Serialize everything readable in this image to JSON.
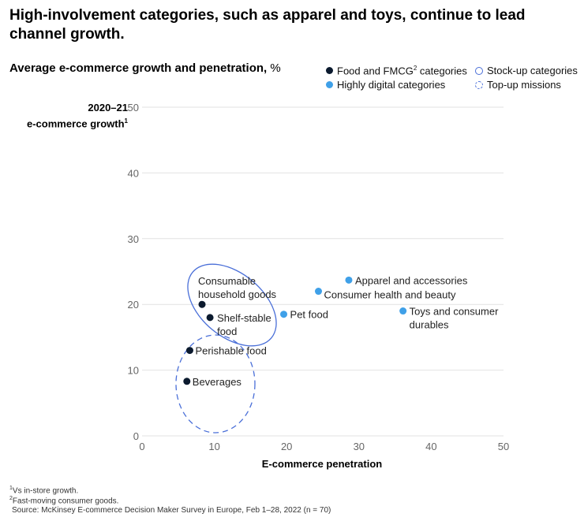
{
  "title": "High-involvement categories, such as apparel and toys, continue to lead channel growth.",
  "subtitle": "Average e-commerce growth and penetration,",
  "subtitle_unit": "%",
  "legend": [
    {
      "label": "Food and FMCG",
      "sup": "2",
      "label_after": " categories",
      "icon": "filled-dot-icon",
      "color": "#0b1a2e"
    },
    {
      "label": "Highly digital categories",
      "icon": "filled-dot-icon",
      "color": "#3fa0e8"
    },
    {
      "label": "Stock-up categories",
      "icon": "solid-circle-outline-icon",
      "color": "#4a6fd8"
    },
    {
      "label": "Top-up missions",
      "icon": "dashed-circle-outline-icon",
      "color": "#4a6fd8"
    }
  ],
  "chart_data": {
    "type": "scatter",
    "title": "Average e-commerce growth and penetration, %",
    "xlabel": "E-commerce penetration",
    "ylabel_line1": "2020–21",
    "ylabel_line2": "e-commerce growth",
    "ylabel_sup": "1",
    "xlim": [
      0,
      50
    ],
    "ylim": [
      0,
      50
    ],
    "xticks": [
      "0",
      "10",
      "20",
      "30",
      "40",
      "50"
    ],
    "yticks": [
      "0",
      "10",
      "20",
      "30",
      "40",
      "50"
    ],
    "grid": true,
    "points": [
      {
        "label": [
          "Consumable",
          "household goods"
        ],
        "x": 8.3,
        "y": 20,
        "group": "Food and FMCG"
      },
      {
        "label": [
          "Shelf-stable",
          "food"
        ],
        "x": 9.4,
        "y": 18,
        "group": "Food and FMCG"
      },
      {
        "label": [
          "Perishable food"
        ],
        "x": 6.6,
        "y": 13,
        "group": "Food and FMCG"
      },
      {
        "label": [
          "Beverages"
        ],
        "x": 6.2,
        "y": 8.3,
        "group": "Food and FMCG"
      },
      {
        "label": [
          "Pet food"
        ],
        "x": 19.6,
        "y": 18.5,
        "group": "Highly digital"
      },
      {
        "label": [
          "Consumer health and beauty"
        ],
        "x": 24.4,
        "y": 22,
        "group": "Highly digital"
      },
      {
        "label": [
          "Apparel and accessories"
        ],
        "x": 28.6,
        "y": 23.7,
        "group": "Highly digital"
      },
      {
        "label": [
          "Toys and consumer",
          "durables"
        ],
        "x": 36.1,
        "y": 19,
        "group": "Highly digital"
      }
    ]
  },
  "footnotes": [
    {
      "sup": "1",
      "text": "Vs in-store growth."
    },
    {
      "sup": "2",
      "text": "Fast-moving consumer goods."
    },
    {
      "sup": "",
      "text": "Source: McKinsey E-commerce Decision Maker Survey in Europe, Feb 1–28, 2022 (n = 70)"
    }
  ]
}
